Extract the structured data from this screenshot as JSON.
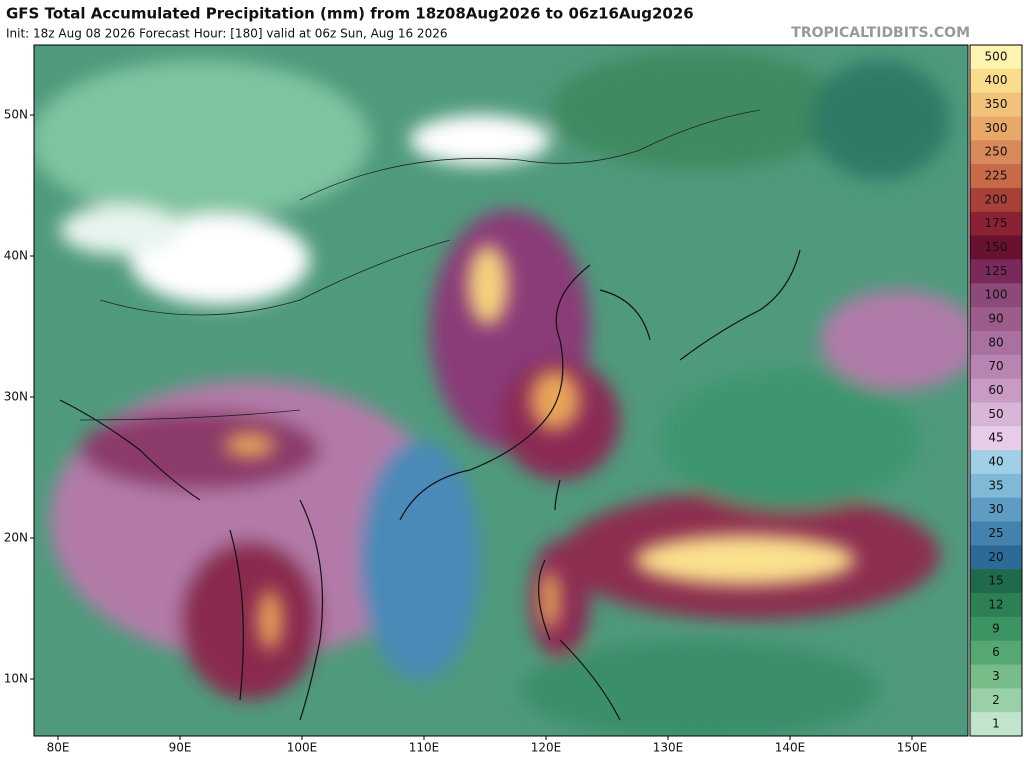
{
  "header": {
    "title": "GFS Total Accumulated Precipitation (mm) from 18z08Aug2026 to 06z16Aug2026",
    "subtitle": "Init: 18z Aug 08 2026   Forecast Hour: [180]   valid at 06z Sun, Aug 16 2026",
    "watermark": "TROPICALTIDBITS.COM"
  },
  "map": {
    "lat_labels": [
      "50N",
      "40N",
      "30N",
      "20N",
      "10N"
    ],
    "lon_labels": [
      "80E",
      "90E",
      "100E",
      "110E",
      "120E",
      "130E",
      "140E",
      "150E"
    ]
  },
  "colorbar": {
    "levels": [
      500,
      400,
      350,
      300,
      250,
      225,
      200,
      175,
      150,
      125,
      100,
      90,
      80,
      70,
      60,
      50,
      45,
      40,
      35,
      30,
      25,
      20,
      15,
      12,
      9,
      6,
      3,
      2,
      1
    ],
    "colors": [
      "#fdf4b0",
      "#f9dc8c",
      "#f1c27a",
      "#e8a86a",
      "#d98a5a",
      "#c76a48",
      "#a84238",
      "#8a2234",
      "#6a1030",
      "#7a2a5a",
      "#8c4a7a",
      "#9c5c8c",
      "#aa70a0",
      "#b884b2",
      "#c89ac4",
      "#d8b4d6",
      "#e6cce6",
      "#9fd0e6",
      "#80b8d8",
      "#5e9cc4",
      "#4482ae",
      "#2e6a98",
      "#1f6a4a",
      "#2c8054",
      "#3c9462",
      "#56a872",
      "#78bc8a",
      "#9ad0a8",
      "#c0e4cc"
    ]
  }
}
